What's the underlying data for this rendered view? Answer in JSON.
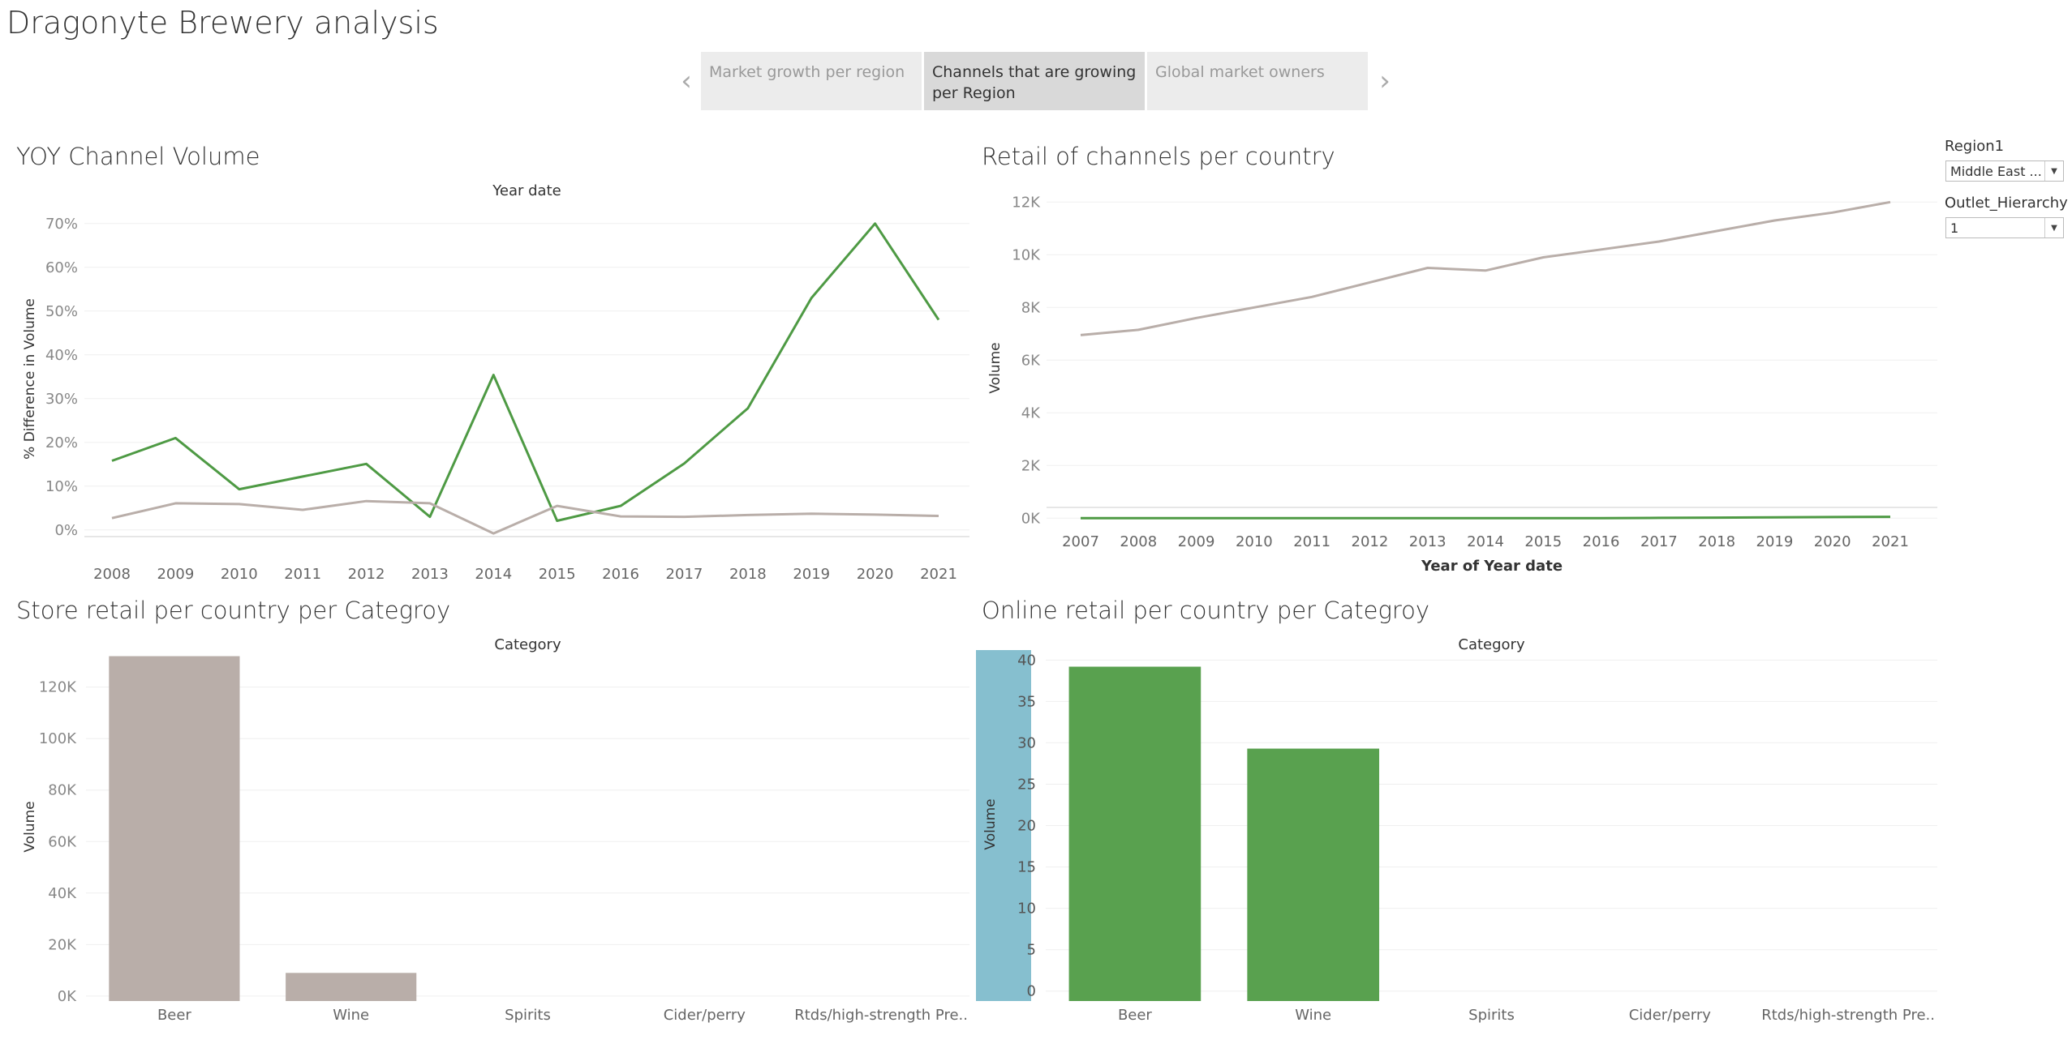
{
  "dashboard": {
    "title": "Dragonyte Brewery analysis"
  },
  "story": {
    "prev_icon": "chevron-left-icon",
    "next_icon": "chevron-right-icon",
    "tabs": [
      {
        "label": "Market growth per region",
        "active": false
      },
      {
        "label": "Channels that are growing per Region",
        "active": true
      },
      {
        "label": "Global market owners",
        "active": false
      }
    ]
  },
  "filters": {
    "region": {
      "label": "Region1",
      "value": "Middle East ..."
    },
    "outlet": {
      "label": "Outlet_Hierarchy",
      "value": "1"
    }
  },
  "colors": {
    "green": "#4e9a44",
    "taupe": "#b9aea9",
    "bar_green": "#59a14f",
    "highlight": "#86bfcf"
  },
  "chart_data": [
    {
      "type": "line",
      "title": "YOY Channel Volume",
      "top_label": "Year date",
      "ylabel": "% Difference in Volume",
      "x": [
        "2008",
        "2009",
        "2010",
        "2011",
        "2012",
        "2013",
        "2014",
        "2015",
        "2016",
        "2017",
        "2018",
        "2019",
        "2020",
        "2021"
      ],
      "yticks": [
        "0%",
        "10%",
        "20%",
        "30%",
        "40%",
        "50%",
        "60%",
        "70%"
      ],
      "ylim": [
        -0.03,
        0.72
      ],
      "series": [
        {
          "color": "#4e9a44",
          "values": [
            0.158,
            0.21,
            0.093,
            0.122,
            0.151,
            0.03,
            0.354,
            0.021,
            0.055,
            0.152,
            0.278,
            0.53,
            0.7,
            0.48
          ]
        },
        {
          "color": "#b9aea9",
          "values": [
            0.027,
            0.061,
            0.059,
            0.046,
            0.066,
            0.061,
            -0.008,
            0.055,
            0.031,
            0.03,
            0.034,
            0.037,
            0.035,
            0.032
          ]
        }
      ],
      "grid": true
    },
    {
      "type": "line",
      "title": "Retail of channels per country",
      "xlabel": "Year of Year date",
      "ylabel": "Volume",
      "x": [
        "2007",
        "2008",
        "2009",
        "2010",
        "2011",
        "2012",
        "2013",
        "2014",
        "2015",
        "2016",
        "2017",
        "2018",
        "2019",
        "2020",
        "2021"
      ],
      "yticks": [
        "0K",
        "2K",
        "4K",
        "6K",
        "8K",
        "10K",
        "12K"
      ],
      "ylim": [
        -700,
        12100
      ],
      "series": [
        {
          "color": "#b9aea9",
          "values": [
            6950,
            7150,
            7600,
            8000,
            8400,
            8950,
            9500,
            9400,
            9900,
            10200,
            10500,
            10900,
            11300,
            11600,
            12000
          ]
        },
        {
          "color": "#4e9a44",
          "values": [
            0,
            0,
            0,
            0,
            0,
            0,
            0,
            0,
            0,
            0,
            10,
            20,
            30,
            40,
            50
          ]
        }
      ],
      "grid": true
    },
    {
      "type": "bar",
      "title": "Store retail per country per Categroy",
      "top_label": "Category",
      "ylabel": "Volume",
      "categories": [
        "Beer",
        "Wine",
        "Spirits",
        "Cider/perry",
        "Rtds/high-strength Pre.."
      ],
      "values": [
        132000,
        9000,
        0,
        0,
        0
      ],
      "yticks": [
        "0K",
        "20K",
        "40K",
        "60K",
        "80K",
        "100K",
        "120K"
      ],
      "ylim": [
        -3500,
        135000
      ],
      "color": "#b9aea9",
      "grid": true
    },
    {
      "type": "bar",
      "title": "Online retail per country per Categroy",
      "top_label": "Category",
      "ylabel": "Volume",
      "categories": [
        "Beer",
        "Wine",
        "Spirits",
        "Cider/perry",
        "Rtds/high-strength Pre.."
      ],
      "values": [
        39.2,
        29.3,
        0,
        0,
        0
      ],
      "yticks": [
        "0",
        "5",
        "10",
        "15",
        "20",
        "25",
        "30",
        "35",
        "40"
      ],
      "ylim": [
        -1.2,
        41.5
      ],
      "color": "#59a14f",
      "grid": true
    }
  ]
}
